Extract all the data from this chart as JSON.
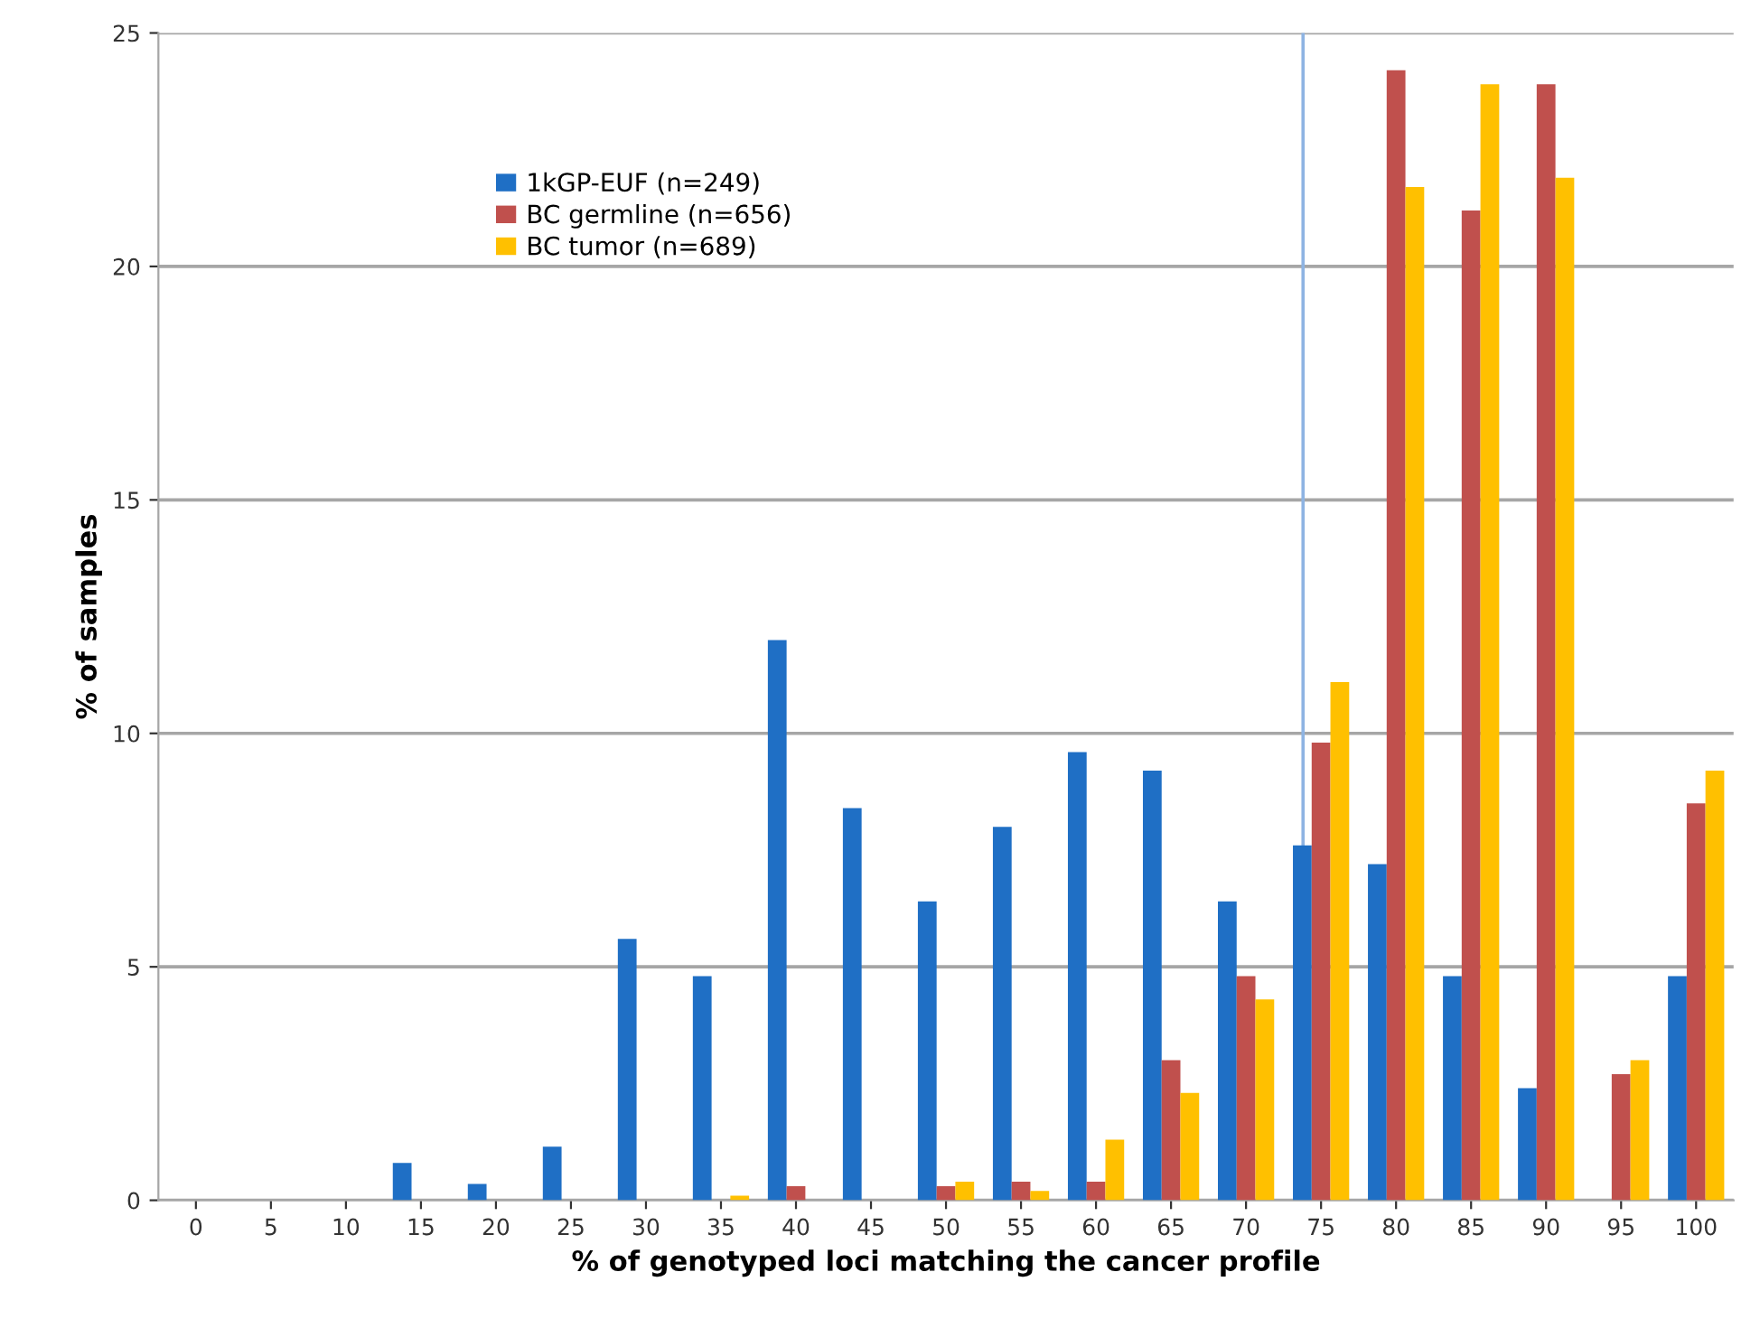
{
  "chart_data": {
    "type": "bar",
    "xlabel": "% of genotyped loci matching the cancer profile",
    "ylabel": "% of samples",
    "x": [
      0,
      5,
      10,
      15,
      20,
      25,
      30,
      35,
      40,
      45,
      50,
      55,
      60,
      65,
      70,
      75,
      80,
      85,
      90,
      95,
      100
    ],
    "xlim": [
      -2.5,
      102.5
    ],
    "xticks": [
      0,
      5,
      10,
      15,
      20,
      25,
      30,
      35,
      40,
      45,
      50,
      55,
      60,
      65,
      70,
      75,
      80,
      85,
      90,
      95,
      100
    ],
    "ylim": [
      0,
      25
    ],
    "yticks": [
      0,
      5,
      10,
      15,
      20,
      25
    ],
    "grid": "y",
    "legend": "top left",
    "ref_lines": [
      {
        "axis": "x",
        "value": 73.8,
        "color": "#8eb4e3"
      }
    ],
    "series": [
      {
        "name": "1kGP-EUF (n=249)",
        "color": "#1f6fc5",
        "values": [
          0,
          0,
          0,
          0.8,
          0.35,
          1.15,
          5.6,
          4.8,
          12.0,
          8.4,
          6.4,
          8.0,
          9.6,
          9.2,
          6.4,
          7.6,
          7.2,
          4.8,
          2.4,
          0,
          4.8
        ]
      },
      {
        "name": "BC germline (n=656)",
        "color": "#c0504d",
        "values": [
          0,
          0,
          0,
          0,
          0,
          0,
          0,
          0,
          0.3,
          0,
          0.3,
          0.4,
          0.4,
          3.0,
          4.8,
          9.8,
          24.2,
          21.2,
          23.9,
          2.7,
          8.5
        ]
      },
      {
        "name": "BC tumor (n=689)",
        "color": "#ffc000",
        "values": [
          0,
          0,
          0,
          0,
          0,
          0,
          0,
          0.1,
          0,
          0,
          0.4,
          0.2,
          1.3,
          2.3,
          4.3,
          11.1,
          21.7,
          23.9,
          21.9,
          3.0,
          9.2
        ]
      }
    ]
  }
}
